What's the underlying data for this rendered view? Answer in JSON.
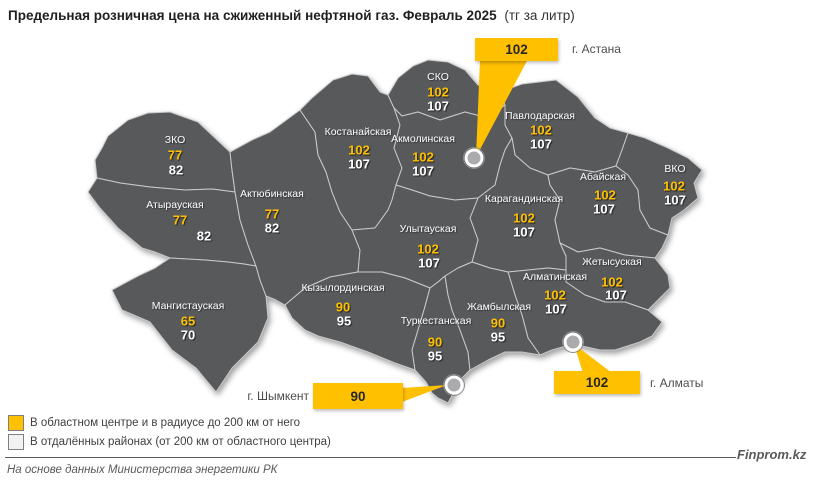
{
  "title": {
    "main": "Предельная розничная цена на сжиженный нефтяной газ. Февраль 2025",
    "unit": "(тг за литр)"
  },
  "colors": {
    "accent": "#FFC000",
    "map_fill": "#58595B",
    "map_border": "#C9CACB",
    "value_remote": "#FFFFFF"
  },
  "regions": [
    {
      "id": "zko",
      "name": "ЗКО",
      "price_center": "77",
      "price_remote": "82"
    },
    {
      "id": "atyrau",
      "name": "Атырауская",
      "price_center": "77",
      "price_remote": "82"
    },
    {
      "id": "mangystau",
      "name": "Мангистауская",
      "price_center": "65",
      "price_remote": "70"
    },
    {
      "id": "aktobe",
      "name": "Актюбинская",
      "price_center": "77",
      "price_remote": "82"
    },
    {
      "id": "kostanay",
      "name": "Костанайская",
      "price_center": "102",
      "price_remote": "107"
    },
    {
      "id": "sko",
      "name": "СКО",
      "price_center": "102",
      "price_remote": "107"
    },
    {
      "id": "akmola",
      "name": "Акмолинская",
      "price_center": "102",
      "price_remote": "107"
    },
    {
      "id": "pavlodar",
      "name": "Павлодарская",
      "price_center": "102",
      "price_remote": "107"
    },
    {
      "id": "karaganda",
      "name": "Карагандинская",
      "price_center": "102",
      "price_remote": "107"
    },
    {
      "id": "ulytau",
      "name": "Улытауская",
      "price_center": "102",
      "price_remote": "107"
    },
    {
      "id": "abai",
      "name": "Абайская",
      "price_center": "102",
      "price_remote": "107"
    },
    {
      "id": "vko",
      "name": "ВКО",
      "price_center": "102",
      "price_remote": "107"
    },
    {
      "id": "zhetysu",
      "name": "Жетысуская",
      "price_center": "102",
      "price_remote": "107"
    },
    {
      "id": "almaty_region",
      "name": "Алматинская",
      "price_center": "102",
      "price_remote": "107"
    },
    {
      "id": "kyzylorda",
      "name": "Кызылординская",
      "price_center": "90",
      "price_remote": "95"
    },
    {
      "id": "turkestan",
      "name": "Туркестанская",
      "price_center": "90",
      "price_remote": "95"
    },
    {
      "id": "zhambyl",
      "name": "Жамбылская",
      "price_center": "90",
      "price_remote": "95"
    }
  ],
  "cities": [
    {
      "id": "astana",
      "name": "г. Астана",
      "price": "102"
    },
    {
      "id": "shymkent",
      "name": "г. Шымкент",
      "price": "90"
    },
    {
      "id": "almaty",
      "name": "г. Алматы",
      "price": "102"
    }
  ],
  "legend": {
    "items": [
      {
        "swatch": "yellow",
        "label": "В областном центре и в радиусе до 200 км от него"
      },
      {
        "swatch": "white",
        "label": "В отдалённых районах (от 200 км от областного центра)"
      }
    ]
  },
  "footer": {
    "source": "На основе данных Министерства энергетики РК",
    "brand": "Finprom.kz"
  }
}
